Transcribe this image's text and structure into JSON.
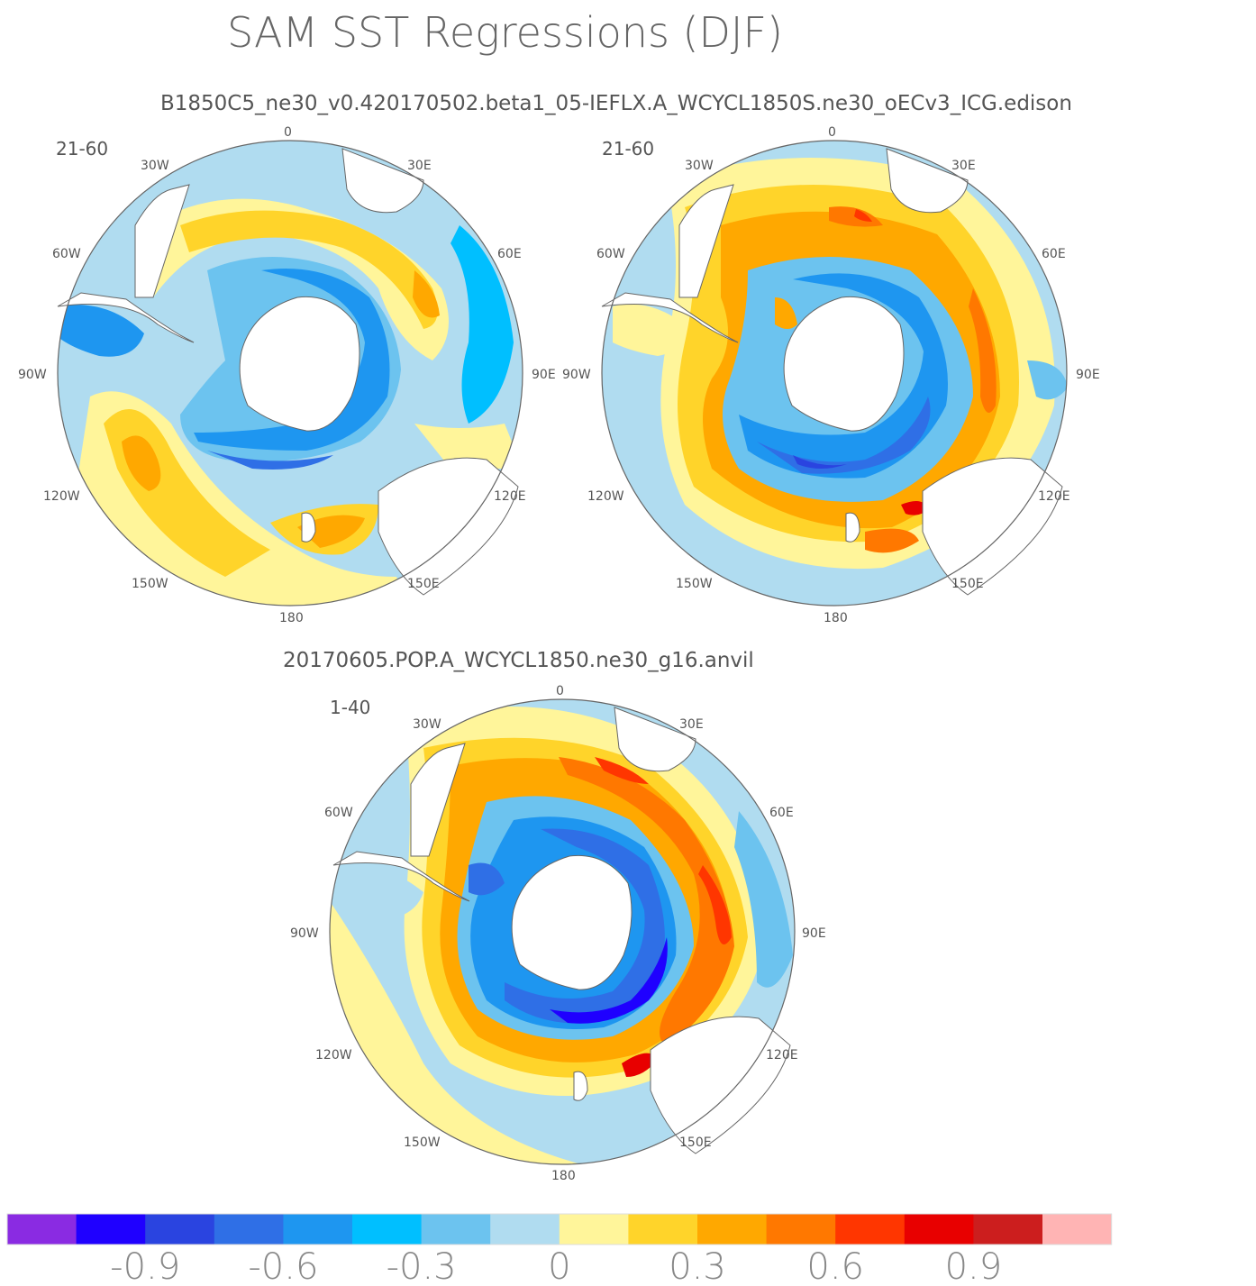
{
  "figure": {
    "title": "SAM SST Regressions (DJF)",
    "top_label": "B1850C5_ne30_v0.420170502.beta1_05-IEFLX.A_WCYCL1850S.ne30_oECv3_ICG.edison",
    "bottom_label": "20170605.POP.A_WCYCL1850.ne30_g16.anvil"
  },
  "panels": [
    {
      "id": "upper-left",
      "years": "21-60",
      "pattern": "weak"
    },
    {
      "id": "upper-right",
      "years": "21-60",
      "pattern": "strong"
    },
    {
      "id": "lower",
      "years": "1-40",
      "pattern": "strongest"
    }
  ],
  "longitude_labels": [
    "0",
    "30E",
    "60E",
    "90E",
    "120E",
    "150E",
    "180",
    "150W",
    "120W",
    "90W",
    "60W",
    "30W"
  ],
  "colorbar": {
    "colors": [
      "#8a2be2",
      "#1f00ff",
      "#2a44e0",
      "#2f6fe6",
      "#1e96f0",
      "#00bfff",
      "#6cc3ef",
      "#b0dcf0",
      "#fff59a",
      "#ffd42a",
      "#ffa800",
      "#ff7800",
      "#ff3600",
      "#e80000",
      "#cc1e1e",
      "#ffb4b4"
    ],
    "tick_labels": [
      "-0.9",
      "-0.6",
      "-0.3",
      "0",
      "0.3",
      "0.6",
      "0.9"
    ]
  },
  "chart_data": {
    "type": "heatmap",
    "title": "SAM SST Regressions (DJF)",
    "projection": "south polar stereographic",
    "levels": [
      -1.05,
      -0.9,
      -0.75,
      -0.6,
      -0.45,
      -0.3,
      -0.15,
      0,
      0.15,
      0.3,
      0.45,
      0.6,
      0.75,
      0.9,
      1.05
    ],
    "colorbar_ticks": [
      -0.9,
      -0.6,
      -0.3,
      0,
      0.3,
      0.6,
      0.9
    ],
    "panels": [
      {
        "run": "B1850C5_ne30_v0.420170502.beta1_05-IEFLX.A_WCYCL1850S.ne30_oECv3_ICG.edison",
        "years": "21-60",
        "min_approx": -0.6,
        "max_approx": 0.45
      },
      {
        "run": "B1850C5_ne30_v0.420170502.beta1_05-IEFLX.A_WCYCL1850S.ne30_oECv3_ICG.edison",
        "years": "21-60",
        "min_approx": -0.6,
        "max_approx": 0.9
      },
      {
        "run": "20170605.POP.A_WCYCL1850.ne30_g16.anvil",
        "years": "1-40",
        "min_approx": -0.9,
        "max_approx": 0.9
      }
    ]
  }
}
